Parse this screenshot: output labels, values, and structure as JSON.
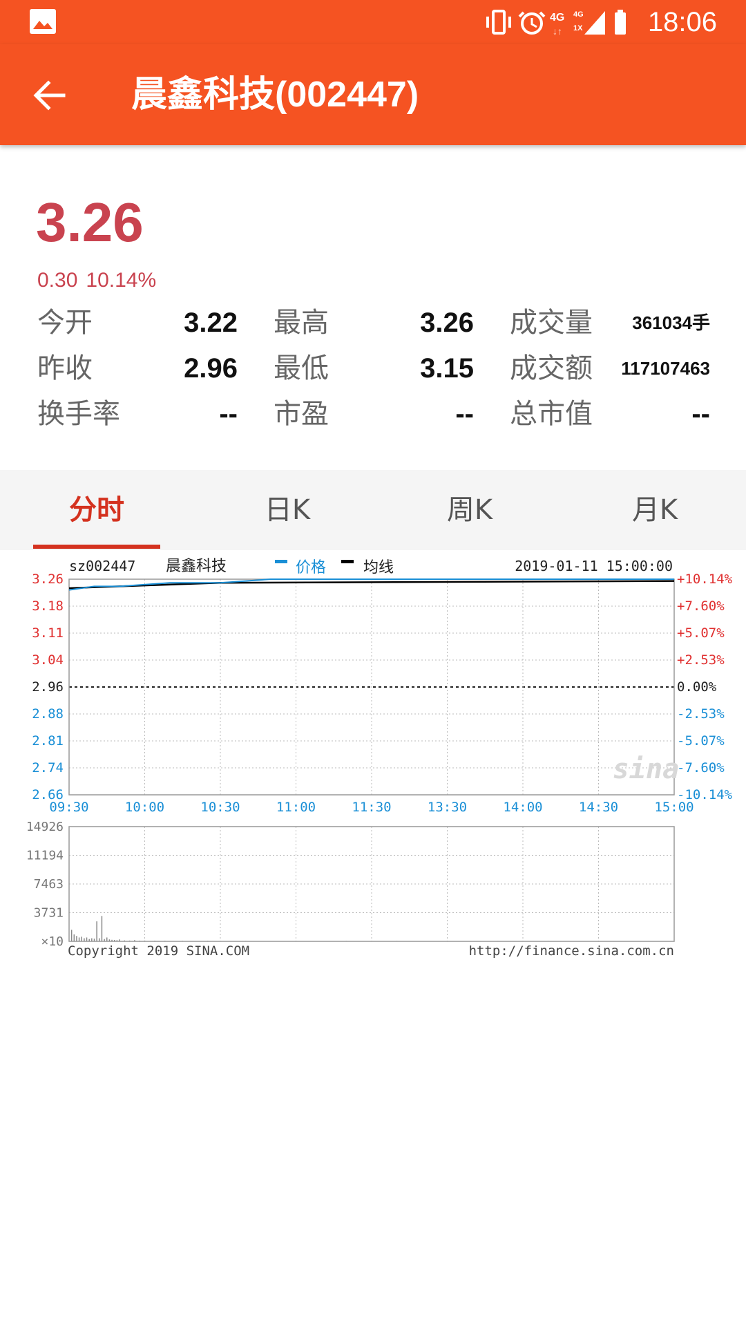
{
  "status_bar": {
    "time": "18:06",
    "network_4g": "4G",
    "network_4g_small": "4G",
    "network_1x": "1X",
    "icons": [
      "gallery-icon",
      "vibrate-icon",
      "alarm-icon",
      "signal-4g-icon",
      "battery-icon"
    ]
  },
  "app_bar": {
    "title": "晨鑫科技(002447)",
    "back_icon": "arrow-back-icon"
  },
  "quote": {
    "price": "3.26",
    "change": "0.30",
    "change_pct": "10.14%",
    "stats": [
      {
        "label": "今开",
        "value": "3.22"
      },
      {
        "label": "最高",
        "value": "3.26"
      },
      {
        "label": "成交量",
        "value": "361034手"
      },
      {
        "label": "昨收",
        "value": "2.96"
      },
      {
        "label": "最低",
        "value": "3.15"
      },
      {
        "label": "成交额",
        "value": "117107463"
      },
      {
        "label": "换手率",
        "value": "--"
      },
      {
        "label": "市盈",
        "value": "--"
      },
      {
        "label": "总市值",
        "value": "--"
      }
    ]
  },
  "tabs": [
    {
      "label": "分时",
      "active": true
    },
    {
      "label": "日K",
      "active": false
    },
    {
      "label": "周K",
      "active": false
    },
    {
      "label": "月K",
      "active": false
    }
  ],
  "colors": {
    "brand": "#f55322",
    "price_red": "#c9434f",
    "tab_active": "#d4321f",
    "axis_red": "#e03030",
    "axis_blue": "#1a8fd6"
  },
  "chart_data": {
    "type": "line",
    "symbol": "sz002447",
    "name": "晨鑫科技",
    "legend": [
      {
        "name": "价格",
        "color": "#1a8fd6"
      },
      {
        "name": "均线",
        "color": "#000000"
      }
    ],
    "datetime": "2019-01-11 15:00:00",
    "price_ticks": [
      "3.26",
      "3.18",
      "3.11",
      "3.04",
      "2.96",
      "2.88",
      "2.81",
      "2.74",
      "2.66"
    ],
    "pct_ticks": [
      "+10.14%",
      "+7.60%",
      "+5.07%",
      "+2.53%",
      "0.00%",
      "-2.53%",
      "-5.07%",
      "-7.60%",
      "-10.14%"
    ],
    "time_ticks": [
      "09:30",
      "10:00",
      "10:30",
      "11:00",
      "11:30",
      "13:30",
      "14:00",
      "14:30",
      "15:00"
    ],
    "ylim": [
      2.66,
      3.26
    ],
    "prev_close": 2.96,
    "price_series": {
      "x": [
        0,
        10,
        20,
        40,
        60,
        80,
        240
      ],
      "y": [
        3.23,
        3.24,
        3.24,
        3.25,
        3.25,
        3.26,
        3.26
      ]
    },
    "avg_series": {
      "x": [
        0,
        20,
        60,
        240
      ],
      "y": [
        3.235,
        3.24,
        3.25,
        3.255
      ]
    },
    "volume": {
      "ticks": [
        "14926",
        "11194",
        "7463",
        "3731",
        "×10"
      ],
      "ylim": [
        0,
        14926
      ],
      "bars_x": [
        1,
        2,
        3,
        4,
        5,
        6,
        7,
        8,
        9,
        10,
        11,
        12,
        13,
        14,
        15,
        16,
        17,
        18,
        19,
        20,
        22,
        24,
        26,
        28,
        30,
        34,
        38,
        45,
        55,
        70,
        90,
        110,
        130,
        150,
        170,
        190,
        210,
        230
      ],
      "bars_y": [
        1500,
        900,
        700,
        500,
        600,
        400,
        500,
        300,
        400,
        350,
        2600,
        400,
        3300,
        300,
        500,
        250,
        200,
        180,
        150,
        250,
        120,
        100,
        160,
        90,
        100,
        80,
        70,
        60,
        60,
        40,
        50,
        40,
        35,
        30,
        30,
        25,
        25,
        20
      ]
    },
    "copyright": "Copyright 2019 SINA.COM",
    "url": "http://finance.sina.com.cn",
    "watermark": "sina"
  }
}
